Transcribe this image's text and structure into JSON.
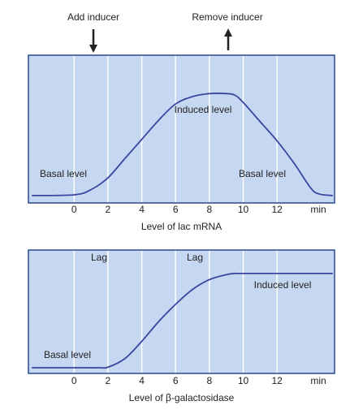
{
  "chart_data": [
    {
      "type": "line",
      "xlabel": "Level of lac mRNA",
      "x_unit": "min",
      "annotations": [
        "Add inducer",
        "Remove inducer",
        "Basal level",
        "Induced level",
        "Basal level"
      ],
      "x": [
        -2.5,
        0,
        1,
        2,
        3,
        4,
        5,
        6,
        7,
        8,
        9,
        9.5,
        10,
        11,
        12,
        13,
        14,
        14.5,
        15.3
      ],
      "series": [
        {
          "color": "#3b46a0",
          "values": [
            5,
            5.5,
            9,
            17,
            30,
            43,
            56,
            67,
            72,
            74,
            74,
            73,
            68,
            55,
            42,
            27,
            10,
            6,
            5
          ]
        }
      ],
      "xlim": [
        -2.7,
        15.4
      ],
      "ylim": [
        0,
        100
      ],
      "xticks": [
        0,
        2,
        4,
        6,
        8,
        10,
        12
      ],
      "grid": true
    },
    {
      "type": "line",
      "xlabel": "Level of β-galactosidase",
      "x_unit": "min",
      "annotations": [
        "Lag",
        "Lag",
        "Basal level",
        "Induced level"
      ],
      "x": [
        -2.5,
        0,
        1.5,
        2,
        3,
        4,
        5,
        6,
        7,
        8,
        9,
        9.5,
        10,
        15.3
      ],
      "series": [
        {
          "color": "#3b46a0",
          "values": [
            4.6,
            4.6,
            4.6,
            5,
            12,
            26,
            42,
            56,
            68,
            76,
            80,
            81,
            81,
            81
          ]
        }
      ],
      "xlim": [
        -2.7,
        15.4
      ],
      "ylim": [
        0,
        100
      ],
      "xticks": [
        0,
        2,
        4,
        6,
        8,
        10,
        12
      ],
      "grid": true
    }
  ]
}
